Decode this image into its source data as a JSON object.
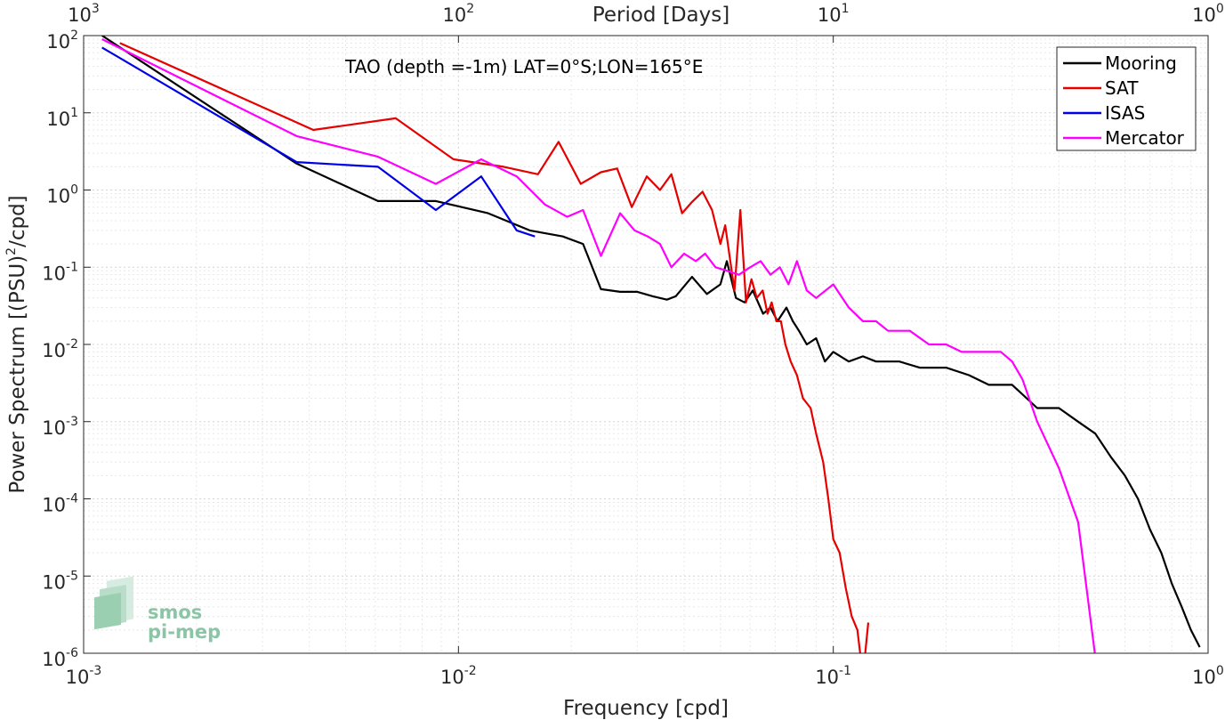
{
  "chart_data": {
    "type": "line",
    "x_scale": "log",
    "y_scale": "log",
    "xlabel": "Frequency [cpd]",
    "ylabel": "Power Spectrum [(PSU)",
    "ylabel_sup": "2",
    "ylabel_tail": "/cpd]",
    "top_xlabel": "Period [Days]",
    "annotation": "TAO (depth =-1m) LAT=0°S;LON=165°E",
    "xlim": [
      0.001,
      1
    ],
    "ylim": [
      1e-06,
      100
    ],
    "grid": true,
    "legend_position": "top-right",
    "x_ticks": [
      {
        "v": 0.001,
        "base": "10",
        "exp": "-3"
      },
      {
        "v": 0.01,
        "base": "10",
        "exp": "-2"
      },
      {
        "v": 0.1,
        "base": "10",
        "exp": "-1"
      },
      {
        "v": 1,
        "base": "10",
        "exp": "0"
      }
    ],
    "top_ticks": [
      {
        "v": 0.001,
        "base": "10",
        "exp": "3"
      },
      {
        "v": 0.01,
        "base": "10",
        "exp": "2"
      },
      {
        "v": 0.1,
        "base": "10",
        "exp": "1"
      },
      {
        "v": 1,
        "base": "10",
        "exp": "0"
      }
    ],
    "y_ticks": [
      {
        "v": 100,
        "base": "10",
        "exp": "2"
      },
      {
        "v": 10,
        "base": "10",
        "exp": "1"
      },
      {
        "v": 1,
        "base": "10",
        "exp": "0"
      },
      {
        "v": 0.1,
        "base": "10",
        "exp": "-1"
      },
      {
        "v": 0.01,
        "base": "10",
        "exp": "-2"
      },
      {
        "v": 0.001,
        "base": "10",
        "exp": "-3"
      },
      {
        "v": 0.0001,
        "base": "10",
        "exp": "-4"
      },
      {
        "v": 1e-05,
        "base": "10",
        "exp": "-5"
      },
      {
        "v": 1e-06,
        "base": "10",
        "exp": "-6"
      }
    ],
    "series": [
      {
        "name": "Mooring",
        "color": "#000000",
        "x": [
          0.00112,
          0.0037,
          0.0061,
          0.0087,
          0.012,
          0.0155,
          0.019,
          0.0215,
          0.024,
          0.027,
          0.03,
          0.033,
          0.036,
          0.038,
          0.042,
          0.046,
          0.05,
          0.052,
          0.055,
          0.058,
          0.061,
          0.065,
          0.068,
          0.071,
          0.075,
          0.078,
          0.081,
          0.085,
          0.09,
          0.095,
          0.1,
          0.11,
          0.12,
          0.13,
          0.15,
          0.17,
          0.2,
          0.23,
          0.26,
          0.3,
          0.35,
          0.4,
          0.45,
          0.5,
          0.55,
          0.6,
          0.65,
          0.7,
          0.75,
          0.8,
          0.85,
          0.9,
          0.95
        ],
        "y": [
          100,
          2.2,
          0.72,
          0.72,
          0.5,
          0.3,
          0.25,
          0.2,
          0.052,
          0.048,
          0.048,
          0.042,
          0.038,
          0.042,
          0.075,
          0.045,
          0.06,
          0.12,
          0.04,
          0.035,
          0.05,
          0.025,
          0.03,
          0.02,
          0.03,
          0.02,
          0.015,
          0.01,
          0.012,
          0.006,
          0.008,
          0.006,
          0.007,
          0.006,
          0.006,
          0.005,
          0.005,
          0.004,
          0.003,
          0.003,
          0.0015,
          0.0015,
          0.001,
          0.0007,
          0.00035,
          0.0002,
          0.0001,
          4e-05,
          2e-05,
          8e-06,
          4e-06,
          2e-06,
          1.2e-06
        ]
      },
      {
        "name": "SAT",
        "color": "#e60000",
        "x": [
          0.00125,
          0.0041,
          0.0068,
          0.0097,
          0.0132,
          0.0163,
          0.0185,
          0.0212,
          0.024,
          0.0265,
          0.029,
          0.0318,
          0.0345,
          0.037,
          0.0395,
          0.042,
          0.0448,
          0.0475,
          0.05,
          0.0515,
          0.0545,
          0.0565,
          0.0585,
          0.0605,
          0.0625,
          0.0648,
          0.0668,
          0.0685,
          0.0705,
          0.0725,
          0.0745,
          0.077,
          0.08,
          0.083,
          0.087,
          0.09,
          0.094,
          0.097,
          0.1,
          0.104,
          0.108,
          0.112,
          0.116,
          0.12,
          0.124
        ],
        "y": [
          80,
          6,
          8.5,
          2.5,
          2.0,
          1.6,
          4.2,
          1.2,
          1.7,
          1.9,
          0.6,
          1.5,
          1.0,
          1.6,
          0.5,
          0.7,
          0.95,
          0.55,
          0.2,
          0.35,
          0.05,
          0.55,
          0.035,
          0.07,
          0.04,
          0.05,
          0.025,
          0.035,
          0.02,
          0.02,
          0.01,
          0.006,
          0.004,
          0.002,
          0.0015,
          0.0007,
          0.0003,
          0.0001,
          3e-05,
          2e-05,
          7e-06,
          3e-06,
          2e-06,
          5e-07,
          2.5e-06
        ]
      },
      {
        "name": "ISAS",
        "color": "#0000e6",
        "x": [
          0.00112,
          0.0037,
          0.0061,
          0.0087,
          0.0115,
          0.0143,
          0.016
        ],
        "y": [
          70,
          2.3,
          2.0,
          0.55,
          1.5,
          0.3,
          0.25
        ]
      },
      {
        "name": "Mercator",
        "color": "#ff00ff",
        "x": [
          0.00112,
          0.0037,
          0.0061,
          0.0087,
          0.0115,
          0.0143,
          0.017,
          0.0195,
          0.0215,
          0.024,
          0.027,
          0.0295,
          0.032,
          0.0345,
          0.037,
          0.04,
          0.043,
          0.0455,
          0.0485,
          0.052,
          0.056,
          0.06,
          0.064,
          0.068,
          0.072,
          0.076,
          0.08,
          0.085,
          0.09,
          0.1,
          0.11,
          0.12,
          0.13,
          0.14,
          0.16,
          0.18,
          0.2,
          0.22,
          0.25,
          0.28,
          0.3,
          0.32,
          0.35,
          0.4,
          0.45,
          0.5
        ],
        "y": [
          90,
          5,
          2.7,
          1.2,
          2.5,
          1.5,
          0.65,
          0.45,
          0.55,
          0.14,
          0.5,
          0.3,
          0.25,
          0.2,
          0.1,
          0.15,
          0.12,
          0.15,
          0.1,
          0.09,
          0.08,
          0.1,
          0.12,
          0.08,
          0.1,
          0.06,
          0.12,
          0.05,
          0.04,
          0.06,
          0.03,
          0.02,
          0.02,
          0.015,
          0.015,
          0.01,
          0.01,
          0.008,
          0.008,
          0.008,
          0.006,
          0.0035,
          0.001,
          0.00025,
          5e-05,
          9e-07
        ]
      }
    ]
  },
  "logo": {
    "line1": "smos",
    "line2": "pi-mep"
  }
}
